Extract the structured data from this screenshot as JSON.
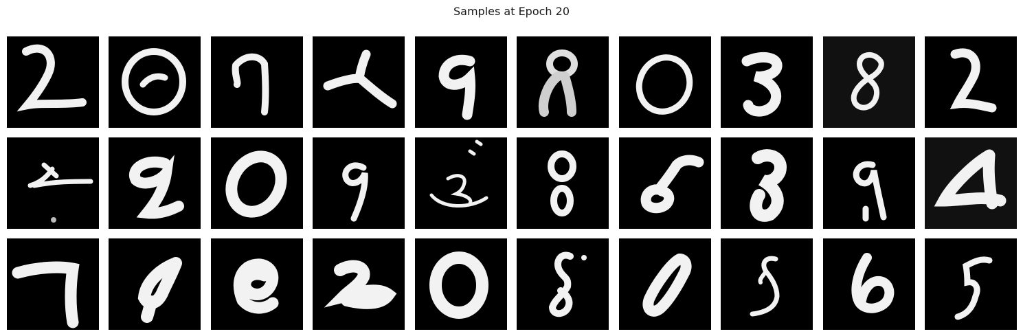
{
  "figure": {
    "title": "Samples at Epoch 20",
    "background_color": "#ffffff",
    "tile_background": "#000000",
    "stroke_color": "#f2f2f2"
  },
  "samples": [
    {
      "row": 0,
      "col": 0,
      "digit": "2"
    },
    {
      "row": 0,
      "col": 1,
      "digit": "0"
    },
    {
      "row": 0,
      "col": 2,
      "digit": "7"
    },
    {
      "row": 0,
      "col": 3,
      "digit": "4"
    },
    {
      "row": 0,
      "col": 4,
      "digit": "9"
    },
    {
      "row": 0,
      "col": 5,
      "digit": "8"
    },
    {
      "row": 0,
      "col": 6,
      "digit": "0"
    },
    {
      "row": 0,
      "col": 7,
      "digit": "3"
    },
    {
      "row": 0,
      "col": 8,
      "digit": "8"
    },
    {
      "row": 0,
      "col": 9,
      "digit": "2"
    },
    {
      "row": 1,
      "col": 0,
      "digit": "x"
    },
    {
      "row": 1,
      "col": 1,
      "digit": "9"
    },
    {
      "row": 1,
      "col": 2,
      "digit": "0"
    },
    {
      "row": 1,
      "col": 3,
      "digit": "9"
    },
    {
      "row": 1,
      "col": 4,
      "digit": "3"
    },
    {
      "row": 1,
      "col": 5,
      "digit": "8"
    },
    {
      "row": 1,
      "col": 6,
      "digit": "5"
    },
    {
      "row": 1,
      "col": 7,
      "digit": "8"
    },
    {
      "row": 1,
      "col": 8,
      "digit": "9"
    },
    {
      "row": 1,
      "col": 9,
      "digit": "4"
    },
    {
      "row": 2,
      "col": 0,
      "digit": "7"
    },
    {
      "row": 2,
      "col": 1,
      "digit": "4"
    },
    {
      "row": 2,
      "col": 2,
      "digit": "9"
    },
    {
      "row": 2,
      "col": 3,
      "digit": "2"
    },
    {
      "row": 2,
      "col": 4,
      "digit": "0"
    },
    {
      "row": 2,
      "col": 5,
      "digit": "8"
    },
    {
      "row": 2,
      "col": 6,
      "digit": "0"
    },
    {
      "row": 2,
      "col": 7,
      "digit": "8"
    },
    {
      "row": 2,
      "col": 8,
      "digit": "6"
    },
    {
      "row": 2,
      "col": 9,
      "digit": "5"
    }
  ]
}
